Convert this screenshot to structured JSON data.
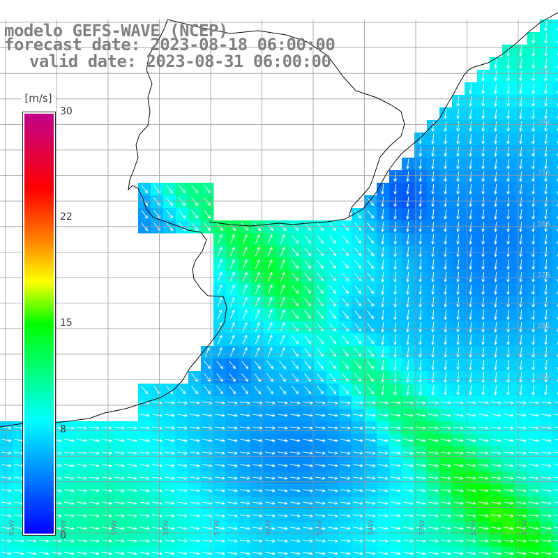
{
  "title": {
    "line1": "modelo GEFS-WAVE (NCEP)",
    "line2": "forecast date: 2023-08-18 06:00:00",
    "line3": "valid date: 2023-08-31 06:00:00"
  },
  "colorbar": {
    "unit": "[m/s]",
    "min": 0,
    "max": 30,
    "ticks": [
      {
        "value": 30,
        "label": "30"
      },
      {
        "value": 22,
        "label": "22"
      },
      {
        "value": 15,
        "label": "15"
      },
      {
        "value": 8,
        "label": "8"
      },
      {
        "value": 0,
        "label": "0"
      }
    ],
    "stops": [
      {
        "pos": 0.0,
        "color": "#0000ff"
      },
      {
        "pos": 0.27,
        "color": "#00ffff"
      },
      {
        "pos": 0.5,
        "color": "#00ff00"
      },
      {
        "pos": 0.6,
        "color": "#ffff00"
      },
      {
        "pos": 0.7,
        "color": "#ff8000"
      },
      {
        "pos": 0.82,
        "color": "#ff0000"
      },
      {
        "pos": 1.0,
        "color": "#c0008a"
      }
    ]
  },
  "lat_labels": [
    "33S",
    "34S",
    "35S",
    "36S",
    "37S",
    "38S",
    "39S",
    "40S",
    "41S"
  ],
  "lon_labels": [
    "61W",
    "60W",
    "59W",
    "58W",
    "57W",
    "56W",
    "55W",
    "54W",
    "53W",
    "52W",
    "51W"
  ],
  "colors": {
    "land": "#ffffff",
    "coast": "#000000",
    "grid": "#999999",
    "arrow": "#ffffff"
  }
}
